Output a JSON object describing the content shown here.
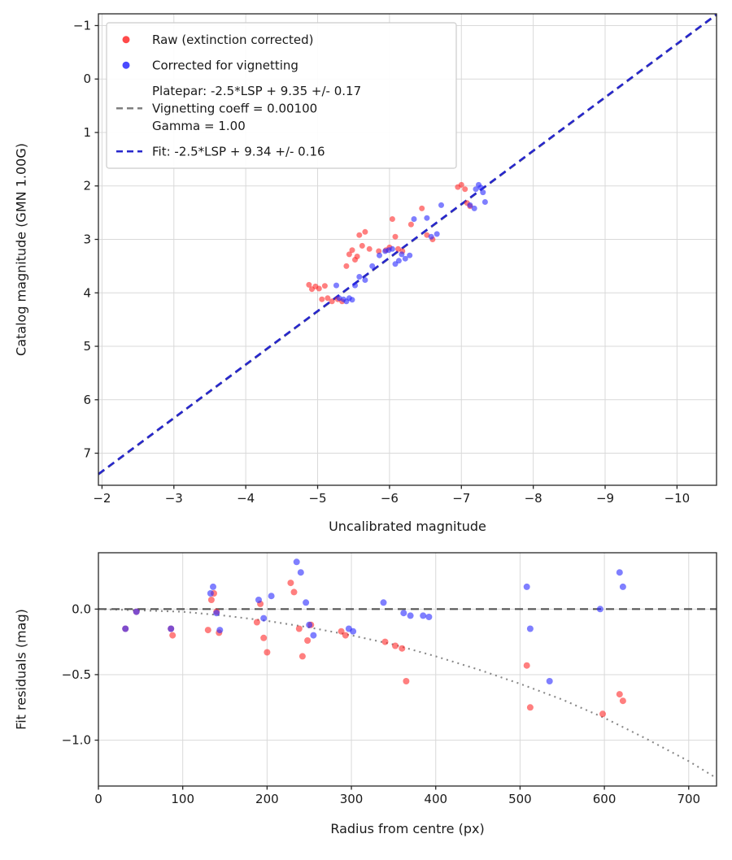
{
  "figure": {
    "background": "#ffffff"
  },
  "colors": {
    "raw": "#ff2a2a",
    "corrected": "#2a2aff",
    "fit_line": "#2727cc",
    "platepar_line": "#7f7f7f",
    "zero_line": "#555555",
    "model_curve": "#888888",
    "grid": "#d9d9d9",
    "spine": "#262626",
    "text": "#1a1a1a"
  },
  "chart_data": [
    {
      "type": "scatter",
      "title": "",
      "xlabel": "Uncalibrated magnitude",
      "ylabel": "Catalog magnitude (GMN 1.00G)",
      "x_range": [
        -1.95,
        -10.55
      ],
      "y_range": [
        7.6,
        -1.22
      ],
      "grid": true,
      "xticks": {
        "values": [
          -2,
          -3,
          -4,
          -5,
          -6,
          -7,
          -8,
          -9,
          -10
        ],
        "labels": [
          "−2",
          "−3",
          "−4",
          "−5",
          "−6",
          "−7",
          "−8",
          "−9",
          "−10"
        ]
      },
      "yticks": {
        "values": [
          -1,
          0,
          1,
          2,
          3,
          4,
          5,
          6,
          7
        ],
        "labels": [
          "−1",
          "0",
          "1",
          "2",
          "3",
          "4",
          "5",
          "6",
          "7"
        ]
      },
      "legend": {
        "position": "upper-left",
        "entries": [
          {
            "marker": "dot",
            "color": "#ff2a2a",
            "lines": [
              "Raw (extinction corrected)"
            ]
          },
          {
            "marker": "dot",
            "color": "#2a2aff",
            "lines": [
              "Corrected for vignetting"
            ]
          },
          {
            "marker": "dash",
            "color": "#7f7f7f",
            "lines": [
              "Platepar: -2.5*LSP + 9.35 +/- 0.17",
              "Vignetting coeff = 0.00100",
              "Gamma = 1.00"
            ]
          },
          {
            "marker": "dash",
            "color": "#2727cc",
            "lines": [
              "Fit: -2.5*LSP + 9.34 +/- 0.16"
            ]
          }
        ]
      },
      "series": [
        {
          "name": "platepar-line",
          "type": "line",
          "color": "#7f7f7f",
          "dash": "9 6",
          "width": 2.4,
          "opacity": 1,
          "points": [
            [
              -1.95,
              7.4
            ],
            [
              -10.55,
              -1.2
            ]
          ]
        },
        {
          "name": "fit-line",
          "type": "line",
          "color": "#2727cc",
          "dash": "9 6",
          "width": 2.6,
          "opacity": 1,
          "points": [
            [
              -1.95,
              7.39
            ],
            [
              -10.55,
              -1.21
            ]
          ]
        },
        {
          "name": "raw-points",
          "type": "scatter",
          "color": "#ff2a2a",
          "opacity": 0.6,
          "size": 3.5,
          "points": [
            [
              -4.88,
              3.85
            ],
            [
              -4.92,
              3.93
            ],
            [
              -4.97,
              3.88
            ],
            [
              -5.02,
              3.92
            ],
            [
              -5.06,
              4.12
            ],
            [
              -5.1,
              3.87
            ],
            [
              -5.14,
              4.1
            ],
            [
              -5.2,
              4.16
            ],
            [
              -5.28,
              4.12
            ],
            [
              -5.34,
              4.16
            ],
            [
              -5.4,
              3.5
            ],
            [
              -5.44,
              3.28
            ],
            [
              -5.48,
              3.2
            ],
            [
              -5.52,
              3.38
            ],
            [
              -5.55,
              3.32
            ],
            [
              -5.58,
              2.92
            ],
            [
              -5.62,
              3.12
            ],
            [
              -5.66,
              2.86
            ],
            [
              -5.72,
              3.18
            ],
            [
              -5.85,
              3.22
            ],
            [
              -5.95,
              3.2
            ],
            [
              -6.0,
              3.15
            ],
            [
              -6.04,
              2.62
            ],
            [
              -6.08,
              2.95
            ],
            [
              -6.12,
              3.18
            ],
            [
              -6.18,
              3.22
            ],
            [
              -6.3,
              2.72
            ],
            [
              -6.45,
              2.42
            ],
            [
              -6.52,
              2.92
            ],
            [
              -6.6,
              3.0
            ],
            [
              -6.95,
              2.02
            ],
            [
              -7.0,
              1.98
            ],
            [
              -7.05,
              2.06
            ],
            [
              -7.08,
              2.32
            ],
            [
              -7.12,
              2.38
            ]
          ]
        },
        {
          "name": "vignetting-corrected-points",
          "type": "scatter",
          "color": "#2a2aff",
          "opacity": 0.6,
          "size": 3.5,
          "points": [
            [
              -5.26,
              3.86
            ],
            [
              -5.3,
              4.1
            ],
            [
              -5.36,
              4.12
            ],
            [
              -5.4,
              4.16
            ],
            [
              -5.44,
              4.1
            ],
            [
              -5.48,
              4.13
            ],
            [
              -5.52,
              3.86
            ],
            [
              -5.58,
              3.7
            ],
            [
              -5.66,
              3.76
            ],
            [
              -5.76,
              3.5
            ],
            [
              -5.86,
              3.3
            ],
            [
              -5.94,
              3.22
            ],
            [
              -5.99,
              3.2
            ],
            [
              -6.04,
              3.18
            ],
            [
              -6.08,
              3.46
            ],
            [
              -6.13,
              3.4
            ],
            [
              -6.17,
              3.28
            ],
            [
              -6.22,
              3.36
            ],
            [
              -6.28,
              3.3
            ],
            [
              -6.34,
              2.62
            ],
            [
              -6.52,
              2.6
            ],
            [
              -6.58,
              2.95
            ],
            [
              -6.66,
              2.9
            ],
            [
              -6.72,
              2.36
            ],
            [
              -7.12,
              2.36
            ],
            [
              -7.18,
              2.42
            ],
            [
              -7.2,
              2.06
            ],
            [
              -7.24,
              1.98
            ],
            [
              -7.27,
              2.03
            ],
            [
              -7.3,
              2.12
            ],
            [
              -7.33,
              2.3
            ]
          ]
        }
      ]
    },
    {
      "type": "scatter",
      "title": "",
      "xlabel": "Radius from centre (px)",
      "ylabel": "Fit residuals (mag)",
      "x_range": [
        0,
        733
      ],
      "y_range": [
        -1.35,
        0.43
      ],
      "grid": true,
      "xticks": {
        "values": [
          0,
          100,
          200,
          300,
          400,
          500,
          600,
          700
        ],
        "labels": [
          "0",
          "100",
          "200",
          "300",
          "400",
          "500",
          "600",
          "700"
        ]
      },
      "yticks": {
        "values": [
          0.0,
          -0.5,
          -1.0
        ],
        "labels": [
          "0.0",
          "−0.5",
          "−1.0"
        ]
      },
      "series": [
        {
          "name": "vignetting-model-curve",
          "type": "line",
          "color": "#888888",
          "dash": "2 5",
          "width": 2.1,
          "opacity": 1,
          "points": [
            [
              0,
              0
            ],
            [
              50,
              -0.01
            ],
            [
              100,
              -0.02
            ],
            [
              150,
              -0.05
            ],
            [
              200,
              -0.09
            ],
            [
              250,
              -0.14
            ],
            [
              300,
              -0.2
            ],
            [
              350,
              -0.27
            ],
            [
              400,
              -0.36
            ],
            [
              450,
              -0.46
            ],
            [
              500,
              -0.57
            ],
            [
              550,
              -0.69
            ],
            [
              600,
              -0.83
            ],
            [
              650,
              -0.99
            ],
            [
              700,
              -1.16
            ],
            [
              733,
              -1.29
            ]
          ]
        },
        {
          "name": "zero-residual-line",
          "type": "line",
          "color": "#555555",
          "dash": "10 6",
          "width": 2.2,
          "opacity": 1,
          "points": [
            [
              0,
              0
            ],
            [
              733,
              0
            ]
          ]
        },
        {
          "name": "raw-residuals",
          "type": "scatter",
          "color": "#ff2a2a",
          "opacity": 0.6,
          "size": 4,
          "points": [
            [
              32,
              -0.15
            ],
            [
              45,
              -0.02
            ],
            [
              86,
              -0.15
            ],
            [
              88,
              -0.2
            ],
            [
              130,
              -0.16
            ],
            [
              134,
              0.07
            ],
            [
              137,
              0.12
            ],
            [
              140,
              -0.02
            ],
            [
              143,
              -0.18
            ],
            [
              188,
              -0.1
            ],
            [
              192,
              0.04
            ],
            [
              196,
              -0.22
            ],
            [
              200,
              -0.33
            ],
            [
              228,
              0.2
            ],
            [
              232,
              0.13
            ],
            [
              238,
              -0.15
            ],
            [
              242,
              -0.36
            ],
            [
              248,
              -0.24
            ],
            [
              252,
              -0.12
            ],
            [
              288,
              -0.17
            ],
            [
              293,
              -0.2
            ],
            [
              340,
              -0.25
            ],
            [
              352,
              -0.28
            ],
            [
              360,
              -0.3
            ],
            [
              365,
              -0.55
            ],
            [
              508,
              -0.43
            ],
            [
              512,
              -0.75
            ],
            [
              598,
              -0.8
            ],
            [
              618,
              -0.65
            ],
            [
              622,
              -0.7
            ]
          ]
        },
        {
          "name": "corrected-residuals",
          "type": "scatter",
          "color": "#2a2aff",
          "opacity": 0.6,
          "size": 4,
          "points": [
            [
              32,
              -0.15
            ],
            [
              45,
              -0.02
            ],
            [
              86,
              -0.15
            ],
            [
              133,
              0.12
            ],
            [
              136,
              0.17
            ],
            [
              140,
              -0.03
            ],
            [
              144,
              -0.16
            ],
            [
              190,
              0.07
            ],
            [
              196,
              -0.07
            ],
            [
              205,
              0.1
            ],
            [
              235,
              0.36
            ],
            [
              240,
              0.28
            ],
            [
              246,
              0.05
            ],
            [
              250,
              -0.12
            ],
            [
              255,
              -0.2
            ],
            [
              297,
              -0.15
            ],
            [
              302,
              -0.17
            ],
            [
              338,
              0.05
            ],
            [
              362,
              -0.03
            ],
            [
              370,
              -0.05
            ],
            [
              385,
              -0.05
            ],
            [
              392,
              -0.06
            ],
            [
              508,
              0.17
            ],
            [
              512,
              -0.15
            ],
            [
              535,
              -0.55
            ],
            [
              595,
              0.0
            ],
            [
              618,
              0.28
            ],
            [
              622,
              0.17
            ]
          ]
        }
      ]
    }
  ]
}
